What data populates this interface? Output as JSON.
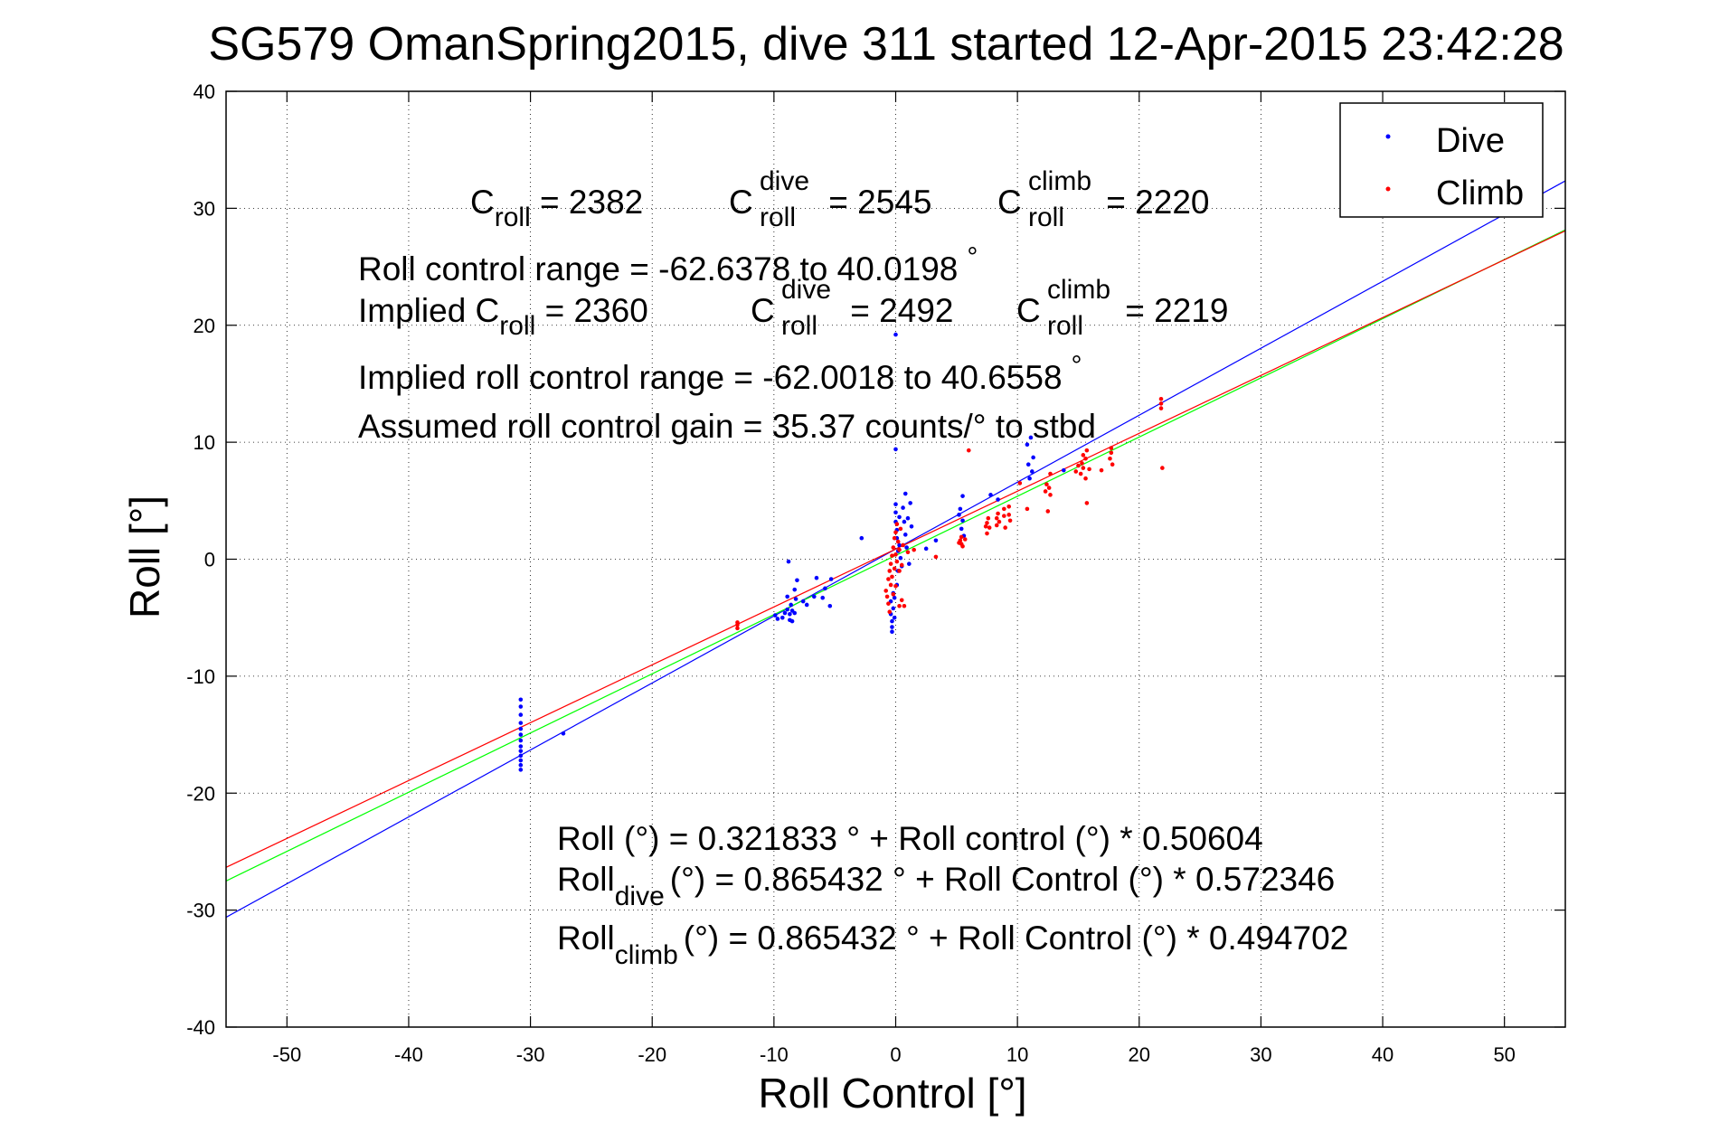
{
  "chart_data": {
    "type": "scatter",
    "title": "SG579 OmanSpring2015, dive 311 started 12-Apr-2015 23:42:28",
    "xlabel": "Roll Control [°]",
    "ylabel": "Roll [°]",
    "xlim": [
      -55,
      55
    ],
    "ylim": [
      -40,
      40
    ],
    "xticks": [
      -50,
      -40,
      -30,
      -20,
      -10,
      0,
      10,
      20,
      30,
      40,
      50
    ],
    "yticks": [
      -40,
      -30,
      -20,
      -10,
      0,
      10,
      20,
      30,
      40
    ],
    "grid": true,
    "legend": {
      "placement": "top-right",
      "entries": [
        "Dive",
        "Climb"
      ]
    },
    "colors": {
      "dive": "#0000ff",
      "climb": "#ff0000",
      "fit": "#00ff00"
    },
    "series": [
      {
        "name": "Dive",
        "color": "#0000ff",
        "points": [
          [
            -30.8,
            -12
          ],
          [
            -30.8,
            -12.6
          ],
          [
            -30.8,
            -13.3
          ],
          [
            -30.8,
            -14
          ],
          [
            -30.8,
            -14.5
          ],
          [
            -30.8,
            -15
          ],
          [
            -30.8,
            -15.5
          ],
          [
            -30.8,
            -16
          ],
          [
            -30.8,
            -16.4
          ],
          [
            -30.8,
            -16.8
          ],
          [
            -30.8,
            -17.2
          ],
          [
            -30.8,
            -17.6
          ],
          [
            -30.8,
            -18
          ],
          [
            -27.3,
            -14.9
          ],
          [
            -9.9,
            -4.8
          ],
          [
            -9.7,
            -5.1
          ],
          [
            -9.3,
            -5
          ],
          [
            -9.1,
            -4.6
          ],
          [
            -8.9,
            -4.3
          ],
          [
            -8.9,
            -3.2
          ],
          [
            -8.8,
            -0.2
          ],
          [
            -8.7,
            -4.7
          ],
          [
            -8.7,
            -5.2
          ],
          [
            -8.6,
            -3.9
          ],
          [
            -8.5,
            -4.4
          ],
          [
            -8.5,
            -5.3
          ],
          [
            -8.3,
            -4.6
          ],
          [
            -8.3,
            -2.6
          ],
          [
            -8.2,
            -3.4
          ],
          [
            -8.1,
            -1.8
          ],
          [
            -7.6,
            -3.6
          ],
          [
            -7.3,
            -3.9
          ],
          [
            -6.7,
            -3.2
          ],
          [
            -6.5,
            -1.6
          ],
          [
            -6,
            -3.3
          ],
          [
            -5.8,
            -2.5
          ],
          [
            -5.4,
            -4
          ],
          [
            -5.3,
            -1.7
          ],
          [
            -2.8,
            1.8
          ],
          [
            -0.4,
            -3.6
          ],
          [
            -0.4,
            -4.7
          ],
          [
            -0.3,
            -5.3
          ],
          [
            -0.3,
            -5.8
          ],
          [
            -0.3,
            -6.2
          ],
          [
            -0.2,
            -2.9
          ],
          [
            -0.2,
            -4.2
          ],
          [
            -0.1,
            -3.3
          ],
          [
            -0.1,
            -5
          ],
          [
            0,
            4.7
          ],
          [
            0,
            4
          ],
          [
            0,
            3.2
          ],
          [
            0,
            19.2
          ],
          [
            0,
            9.4
          ],
          [
            0.1,
            2.5
          ],
          [
            0.1,
            1.8
          ],
          [
            0.1,
            -2.2
          ],
          [
            0.2,
            0.7
          ],
          [
            0.2,
            -1
          ],
          [
            0.3,
            3.6
          ],
          [
            0.3,
            1.2
          ],
          [
            0.4,
            0.1
          ],
          [
            0.5,
            -0.6
          ],
          [
            0.6,
            4.4
          ],
          [
            0.7,
            3.2
          ],
          [
            0.8,
            2.1
          ],
          [
            0.8,
            5.6
          ],
          [
            0.9,
            1
          ],
          [
            1,
            3.5
          ],
          [
            1.1,
            -0.4
          ],
          [
            1.2,
            4.8
          ],
          [
            1.3,
            2.8
          ],
          [
            2.5,
            0.9
          ],
          [
            3.3,
            1.6
          ],
          [
            5.2,
            3.8
          ],
          [
            5.3,
            4.3
          ],
          [
            5.4,
            2.6
          ],
          [
            5.5,
            5.4
          ],
          [
            5.5,
            3.3
          ],
          [
            5.6,
            2
          ],
          [
            7.8,
            5.5
          ],
          [
            8.4,
            5.1
          ],
          [
            10.8,
            9.8
          ],
          [
            10.9,
            8.1
          ],
          [
            11,
            6.9
          ],
          [
            11.1,
            10.4
          ],
          [
            11.2,
            7.5
          ],
          [
            11.3,
            8.7
          ],
          [
            13.8,
            7.6
          ]
        ]
      },
      {
        "name": "Climb",
        "color": "#ff0000",
        "points": [
          [
            -13,
            -5.4
          ],
          [
            -13,
            -5.9
          ],
          [
            -13,
            -5.6
          ],
          [
            -0.8,
            -2.7
          ],
          [
            -0.7,
            -3.2
          ],
          [
            -0.6,
            -1.7
          ],
          [
            -0.6,
            -3.8
          ],
          [
            -0.5,
            -4.5
          ],
          [
            -0.5,
            -1
          ],
          [
            -0.4,
            -2.2
          ],
          [
            -0.4,
            -0.4
          ],
          [
            -0.3,
            0.3
          ],
          [
            -0.3,
            -1.5
          ],
          [
            -0.2,
            1
          ],
          [
            -0.2,
            -3
          ],
          [
            -0.1,
            1.8
          ],
          [
            -0.1,
            -0.8
          ],
          [
            0,
            2.3
          ],
          [
            0,
            -2.3
          ],
          [
            0,
            0.4
          ],
          [
            0.1,
            -0.2
          ],
          [
            0.1,
            3
          ],
          [
            0.2,
            1.5
          ],
          [
            0.3,
            -1
          ],
          [
            0.3,
            -4
          ],
          [
            0.3,
            0.8
          ],
          [
            0.4,
            2.6
          ],
          [
            0.5,
            -0.5
          ],
          [
            0.5,
            -3.5
          ],
          [
            0.6,
            1.2
          ],
          [
            0.7,
            -4
          ],
          [
            1,
            0.6
          ],
          [
            1.5,
            0.8
          ],
          [
            3.3,
            0.2
          ],
          [
            5.2,
            1.4
          ],
          [
            5.3,
            1.6
          ],
          [
            5.4,
            1.9
          ],
          [
            5.4,
            1.3
          ],
          [
            5.5,
            1.1
          ],
          [
            5.7,
            1.7
          ],
          [
            6,
            9.3
          ],
          [
            7.4,
            2.8
          ],
          [
            7.5,
            3.1
          ],
          [
            7.5,
            2.2
          ],
          [
            7.6,
            3.5
          ],
          [
            7.7,
            2.7
          ],
          [
            8.3,
            2.9
          ],
          [
            8.3,
            3.5
          ],
          [
            8.4,
            3.9
          ],
          [
            8.5,
            3.2
          ],
          [
            8.9,
            3.7
          ],
          [
            8.9,
            4.3
          ],
          [
            9,
            2.7
          ],
          [
            9.3,
            3.8
          ],
          [
            9.3,
            4.5
          ],
          [
            9.4,
            3.3
          ],
          [
            10.2,
            6.5
          ],
          [
            10.8,
            4.3
          ],
          [
            12.3,
            5.8
          ],
          [
            12.4,
            6.4
          ],
          [
            12.5,
            4.1
          ],
          [
            12.6,
            6.1
          ],
          [
            12.7,
            5.5
          ],
          [
            12.7,
            7.3
          ],
          [
            14.8,
            7.5
          ],
          [
            15,
            8
          ],
          [
            15.2,
            7.3
          ],
          [
            15.3,
            8.2
          ],
          [
            15.4,
            8.9
          ],
          [
            15.4,
            7.8
          ],
          [
            15.6,
            6.9
          ],
          [
            15.6,
            8.6
          ],
          [
            15.7,
            4.8
          ],
          [
            15.7,
            9.3
          ],
          [
            15.9,
            7.7
          ],
          [
            16.9,
            7.6
          ],
          [
            17.6,
            8.6
          ],
          [
            17.7,
            9.1
          ],
          [
            17.7,
            9.5
          ],
          [
            17.8,
            8.1
          ],
          [
            21.8,
            12.9
          ],
          [
            21.8,
            13.3
          ],
          [
            21.8,
            13.7
          ],
          [
            21.9,
            7.8
          ]
        ]
      }
    ],
    "fit_lines": [
      {
        "name": "dive fit",
        "color": "#0000ff",
        "intercept": 0.865432,
        "slope": 0.572346
      },
      {
        "name": "fit",
        "color": "#00ff00",
        "intercept": 0.321833,
        "slope": 0.50604
      },
      {
        "name": "climb fit",
        "color": "#ff0000",
        "intercept": 0.865432,
        "slope": 0.494702
      }
    ],
    "annotations": {
      "c_roll": "2382",
      "c_roll_dive": "2545",
      "c_roll_climb": "2220",
      "roll_control_range": "Roll control range = -62.6378 to 40.0198",
      "implied_c_roll": "2360",
      "implied_c_roll_dive": "2492",
      "implied_c_roll_climb": "2219",
      "implied_range": "Implied roll control range = -62.0018 to 40.6558",
      "gain": "Assumed roll control gain = 35.37 counts/° to stbd",
      "eq1": "Roll (°) = 0.321833 ° + Roll control (°) * 0.50604",
      "eq2_rhs": "(°) = 0.865432 ° + Roll Control (°) * 0.572346",
      "eq3_rhs": "(°) = 0.865432 ° + Roll Control (°) * 0.494702"
    }
  }
}
